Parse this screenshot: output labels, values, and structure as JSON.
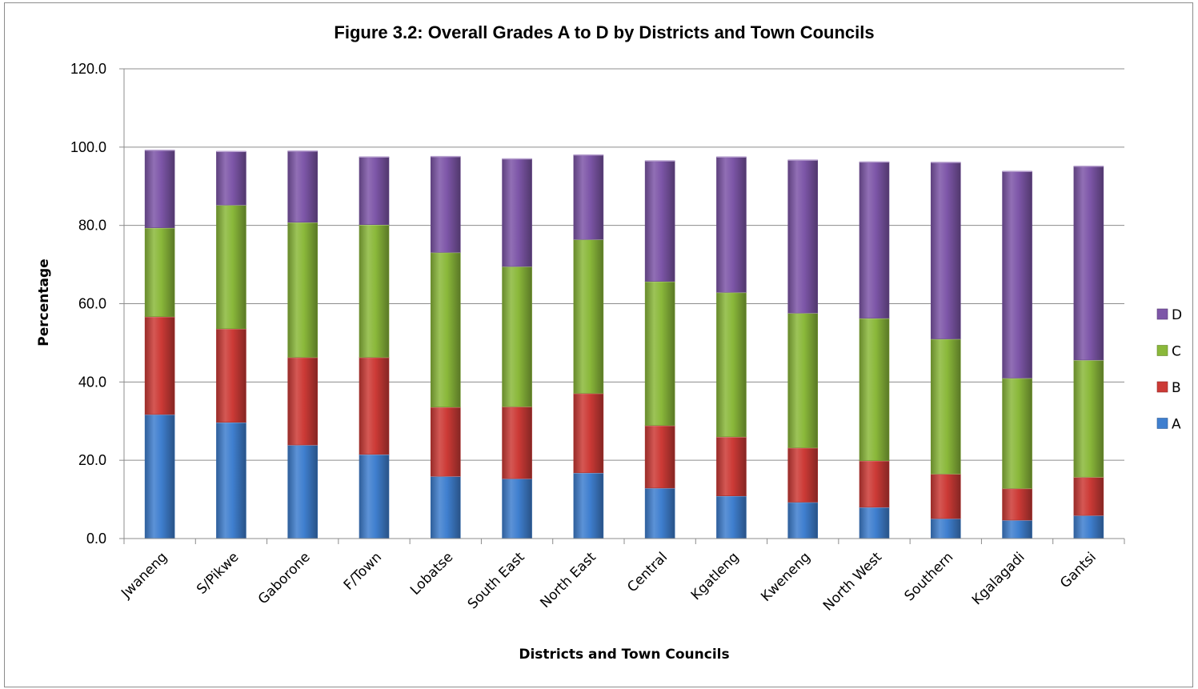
{
  "chart_data": {
    "type": "bar",
    "stacked": true,
    "title": "Figure 3.2: Overall Grades A to D by Districts and Town Councils",
    "xlabel": "Districts and Town Councils",
    "ylabel": "Percentage",
    "ylim": [
      0,
      120
    ],
    "yticks": [
      "0.0",
      "20.0",
      "40.0",
      "60.0",
      "80.0",
      "100.0",
      "120.0"
    ],
    "grid": true,
    "legend_position": "right",
    "categories": [
      "Jwaneng",
      "S/Pikwe",
      "Gaborone",
      "F/Town",
      "Lobatse",
      "South East",
      "North East",
      "Central",
      "Kgatleng",
      "Kweneng",
      "North West",
      "Southern",
      "Kgalagadi",
      "Gantsi"
    ],
    "series": [
      {
        "name": "A",
        "color": "#3f7fcf",
        "values": [
          31.7,
          29.7,
          23.9,
          21.5,
          15.9,
          15.3,
          16.8,
          12.9,
          10.9,
          9.3,
          8.0,
          5.1,
          4.7,
          5.9
        ]
      },
      {
        "name": "B",
        "color": "#cc3a36",
        "values": [
          25.0,
          23.9,
          22.4,
          24.8,
          17.7,
          18.4,
          20.3,
          16.0,
          15.1,
          13.9,
          11.9,
          11.4,
          8.1,
          9.8
        ]
      },
      {
        "name": "C",
        "color": "#8ab83a",
        "values": [
          22.7,
          31.6,
          34.5,
          33.9,
          39.5,
          35.8,
          39.3,
          36.8,
          36.9,
          34.4,
          36.4,
          34.5,
          28.2,
          29.9
        ]
      },
      {
        "name": "D",
        "color": "#7d56a8",
        "values": [
          19.8,
          13.7,
          18.2,
          17.3,
          24.5,
          27.5,
          21.6,
          30.8,
          34.6,
          39.1,
          39.9,
          45.1,
          52.8,
          49.5
        ]
      }
    ]
  }
}
